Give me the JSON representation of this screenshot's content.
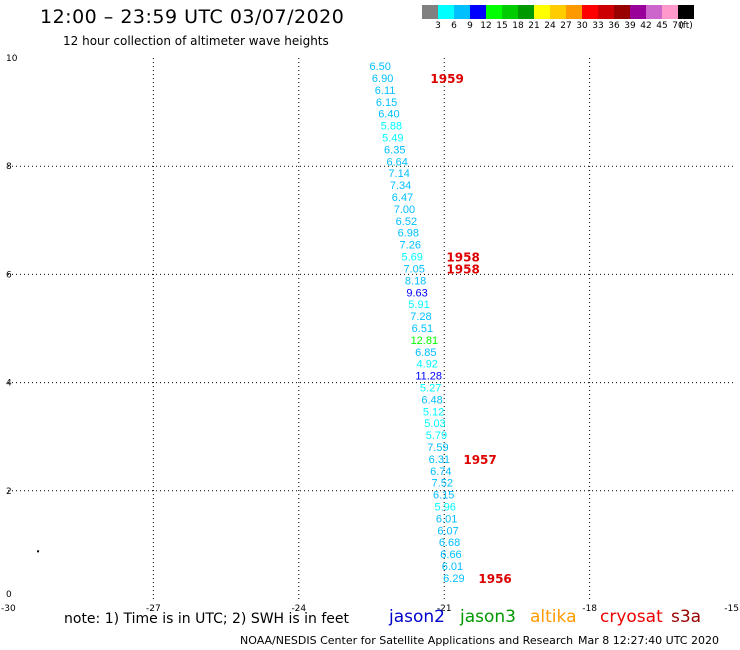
{
  "header": {
    "title": "12:00 – 23:59 UTC 03/07/2020",
    "subtitle": "12 hour collection of altimeter wave heights"
  },
  "color_scale": {
    "unit": "(ft)",
    "bins": [
      {
        "label": "3",
        "color": "#808080"
      },
      {
        "label": "6",
        "color": "#00ffff"
      },
      {
        "label": "9",
        "color": "#00bfff"
      },
      {
        "label": "12",
        "color": "#0000ff"
      },
      {
        "label": "15",
        "color": "#00ff00"
      },
      {
        "label": "18",
        "color": "#00cc00"
      },
      {
        "label": "21",
        "color": "#009900"
      },
      {
        "label": "24",
        "color": "#ffff00"
      },
      {
        "label": "27",
        "color": "#ffcc00"
      },
      {
        "label": "30",
        "color": "#ff9900"
      },
      {
        "label": "33",
        "color": "#ff0000"
      },
      {
        "label": "36",
        "color": "#cc0000"
      },
      {
        "label": "39",
        "color": "#990000"
      },
      {
        "label": "42",
        "color": "#990099"
      },
      {
        "label": "45",
        "color": "#cc66cc"
      },
      {
        "label": "70",
        "color": "#ff99cc"
      },
      {
        "label": "",
        "color": "#000000"
      }
    ]
  },
  "map": {
    "lon_range": [
      -30,
      -15
    ],
    "lat_range": [
      0,
      10
    ],
    "lon_ticks": [
      "-30",
      "-27",
      "-24",
      "-21",
      "-18",
      "-15"
    ],
    "lat_ticks": [
      "0",
      "2",
      "4",
      "6",
      "8",
      "10"
    ],
    "lon_tick_values": [
      -30,
      -27,
      -24,
      -21,
      -18,
      -15
    ],
    "lat_tick_values": [
      0,
      2,
      4,
      6,
      8,
      10
    ],
    "dot": {
      "lon": -29.4,
      "lat": 0.9
    }
  },
  "observations": [
    {
      "lon": -22.32,
      "lat": 9.85,
      "swh": "6.50",
      "color": "#00bfff"
    },
    {
      "lon": -22.27,
      "lat": 9.63,
      "swh": "6.90",
      "color": "#00bfff"
    },
    {
      "lon": -22.22,
      "lat": 9.41,
      "swh": "6.11",
      "color": "#00bfff"
    },
    {
      "lon": -22.19,
      "lat": 9.19,
      "swh": "6.15",
      "color": "#00bfff"
    },
    {
      "lon": -22.14,
      "lat": 8.97,
      "swh": "6.40",
      "color": "#00bfff"
    },
    {
      "lon": -22.09,
      "lat": 8.75,
      "swh": "5.88",
      "color": "#00ffff"
    },
    {
      "lon": -22.06,
      "lat": 8.53,
      "swh": "5.49",
      "color": "#00ffff"
    },
    {
      "lon": -22.02,
      "lat": 8.31,
      "swh": "6.35",
      "color": "#00bfff"
    },
    {
      "lon": -21.97,
      "lat": 8.09,
      "swh": "6.64",
      "color": "#00bfff"
    },
    {
      "lon": -21.93,
      "lat": 7.87,
      "swh": "7.14",
      "color": "#00bfff"
    },
    {
      "lon": -21.9,
      "lat": 7.65,
      "swh": "7.34",
      "color": "#00bfff"
    },
    {
      "lon": -21.86,
      "lat": 7.43,
      "swh": "6.47",
      "color": "#00bfff"
    },
    {
      "lon": -21.82,
      "lat": 7.21,
      "swh": "7.00",
      "color": "#00bfff"
    },
    {
      "lon": -21.78,
      "lat": 6.99,
      "swh": "6.52",
      "color": "#00bfff"
    },
    {
      "lon": -21.74,
      "lat": 6.77,
      "swh": "6.98",
      "color": "#00bfff"
    },
    {
      "lon": -21.7,
      "lat": 6.55,
      "swh": "7.26",
      "color": "#00bfff"
    },
    {
      "lon": -21.66,
      "lat": 6.33,
      "swh": "5.69",
      "color": "#00ffff"
    },
    {
      "lon": -21.62,
      "lat": 6.11,
      "swh": "7.05",
      "color": "#00bfff"
    },
    {
      "lon": -21.59,
      "lat": 5.89,
      "swh": "8.18",
      "color": "#00bfff"
    },
    {
      "lon": -21.56,
      "lat": 5.67,
      "swh": "9.63",
      "color": "#0000ff"
    },
    {
      "lon": -21.52,
      "lat": 5.45,
      "swh": "5.91",
      "color": "#00ffff"
    },
    {
      "lon": -21.48,
      "lat": 5.23,
      "swh": "7.28",
      "color": "#00bfff"
    },
    {
      "lon": -21.45,
      "lat": 5.01,
      "swh": "6.51",
      "color": "#00bfff"
    },
    {
      "lon": -21.41,
      "lat": 4.79,
      "swh": "12.81",
      "color": "#00ff00"
    },
    {
      "lon": -21.38,
      "lat": 4.57,
      "swh": "6.85",
      "color": "#00bfff"
    },
    {
      "lon": -21.35,
      "lat": 4.35,
      "swh": "4.92",
      "color": "#00ffff"
    },
    {
      "lon": -21.32,
      "lat": 4.13,
      "swh": "11.28",
      "color": "#0000ff"
    },
    {
      "lon": -21.28,
      "lat": 3.91,
      "swh": "5.27",
      "color": "#00ffff"
    },
    {
      "lon": -21.25,
      "lat": 3.69,
      "swh": "6.48",
      "color": "#00bfff"
    },
    {
      "lon": -21.22,
      "lat": 3.47,
      "swh": "5.12",
      "color": "#00ffff"
    },
    {
      "lon": -21.19,
      "lat": 3.25,
      "swh": "5.03",
      "color": "#00ffff"
    },
    {
      "lon": -21.16,
      "lat": 3.03,
      "swh": "5.79",
      "color": "#00ffff"
    },
    {
      "lon": -21.13,
      "lat": 2.81,
      "swh": "7.59",
      "color": "#00bfff"
    },
    {
      "lon": -21.1,
      "lat": 2.59,
      "swh": "6.31",
      "color": "#00bfff"
    },
    {
      "lon": -21.07,
      "lat": 2.37,
      "swh": "6.74",
      "color": "#00bfff"
    },
    {
      "lon": -21.04,
      "lat": 2.15,
      "swh": "7.52",
      "color": "#00bfff"
    },
    {
      "lon": -21.01,
      "lat": 1.93,
      "swh": "6.15",
      "color": "#00bfff"
    },
    {
      "lon": -20.98,
      "lat": 1.71,
      "swh": "5.96",
      "color": "#00ffff"
    },
    {
      "lon": -20.95,
      "lat": 1.49,
      "swh": "6.01",
      "color": "#00bfff"
    },
    {
      "lon": -20.92,
      "lat": 1.27,
      "swh": "6.07",
      "color": "#00bfff"
    },
    {
      "lon": -20.89,
      "lat": 1.05,
      "swh": "6.68",
      "color": "#00bfff"
    },
    {
      "lon": -20.86,
      "lat": 0.83,
      "swh": "6.66",
      "color": "#00bfff"
    },
    {
      "lon": -20.83,
      "lat": 0.61,
      "swh": "6.01",
      "color": "#00bfff"
    },
    {
      "lon": -20.8,
      "lat": 0.39,
      "swh": "6.29",
      "color": "#00bfff"
    }
  ],
  "time_labels": [
    {
      "text": "1959",
      "lon": -20.94,
      "lat": 9.63
    },
    {
      "text": "1958",
      "lon": -20.61,
      "lat": 6.33
    },
    {
      "text": "1958",
      "lon": -20.61,
      "lat": 6.11
    },
    {
      "text": "1957",
      "lon": -20.26,
      "lat": 2.59
    },
    {
      "text": "1956",
      "lon": -19.95,
      "lat": 0.39
    }
  ],
  "footer": {
    "note": "note: 1) Time is in UTC; 2) SWH is in feet",
    "satellites": [
      {
        "name": "jason2",
        "color": "#0000cc"
      },
      {
        "name": "jason3",
        "color": "#009900"
      },
      {
        "name": "altika",
        "color": "#ff9900"
      },
      {
        "name": "cryosat",
        "color": "#ee0000"
      },
      {
        "name": "s3a",
        "color": "#990000"
      }
    ],
    "credit": "NOAA/NESDIS Center for Satellite Applications and Research",
    "timestamp": "Mar  8 12:27:40 UTC 2020"
  }
}
